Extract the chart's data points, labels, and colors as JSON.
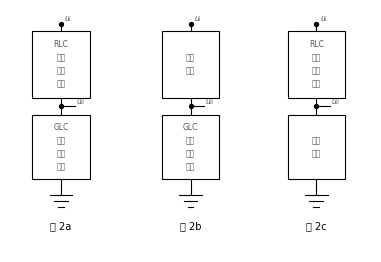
{
  "background_color": "#ffffff",
  "figures": [
    {
      "label": "图 2a",
      "top_box_lines": [
        "RLC",
        "串联",
        "谐振",
        "电路"
      ],
      "bottom_box_lines": [
        "GLC",
        "并联",
        "谐振",
        "电路"
      ]
    },
    {
      "label": "图 2b",
      "top_box_lines": [
        "电阻",
        "电路"
      ],
      "bottom_box_lines": [
        "GLC",
        "并联",
        "谐振",
        "电路"
      ]
    },
    {
      "label": "图 2c",
      "top_box_lines": [
        "RLC",
        "串联",
        "谐振",
        "电路"
      ],
      "bottom_box_lines": [
        "电阻",
        "电路"
      ]
    }
  ],
  "ui_label": "uᵢ",
  "uo_label": "u₀",
  "box_color": "#000000",
  "text_color": "#555555",
  "line_color": "#000000",
  "dot_color": "#000000",
  "font_size": 5.5,
  "fig_label_font_size": 7.0
}
